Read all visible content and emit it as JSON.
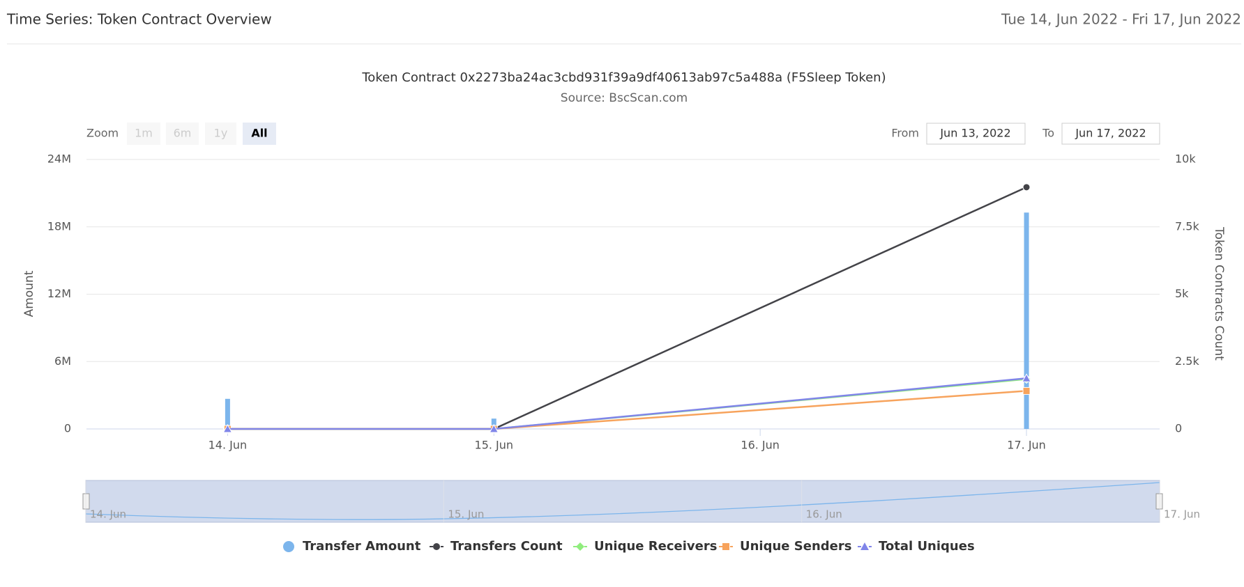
{
  "header": {
    "title": "Time Series: Token Contract Overview",
    "date_range": "Tue 14, Jun 2022 - Fri 17, Jun 2022"
  },
  "range_selector": {
    "zoom_label": "Zoom",
    "buttons": [
      "1m",
      "6m",
      "1y",
      "All"
    ],
    "active": "All",
    "from_label": "From",
    "from": "Jun 13, 2022",
    "to_label": "To",
    "to": "Jun 17, 2022"
  },
  "chart_data": {
    "type": "combo",
    "title": "Token Contract 0x2273ba24ac3cbd931f39a9df40613ab97c5a488a (F5Sleep Token)",
    "subtitle": "Source: BscScan.com",
    "y_label": "Amount",
    "y2_label": "Token Contracts Count",
    "x": [
      "14. Jun",
      "15. Jun",
      "17. Jun"
    ],
    "xlim": [
      13.47,
      17.5
    ],
    "xticks": [
      {
        "value": 14,
        "label": "14. Jun"
      },
      {
        "value": 15,
        "label": "15. Jun"
      },
      {
        "value": 16,
        "label": "16. Jun"
      },
      {
        "value": 17,
        "label": "17. Jun"
      }
    ],
    "ylim": [
      0,
      24000000
    ],
    "yticks": [
      0,
      {
        "value": 6000000,
        "label": "6M"
      },
      {
        "value": 12000000,
        "label": "12M"
      },
      {
        "value": 18000000,
        "label": "18M"
      },
      {
        "value": 24000000,
        "label": "24M"
      }
    ],
    "y2lim": [
      0,
      10000
    ],
    "y2ticks": [
      0,
      {
        "value": 2500,
        "label": "2.5k"
      },
      {
        "value": 5000,
        "label": "5k"
      },
      {
        "value": 7500,
        "label": "7.5k"
      },
      {
        "value": 10000,
        "label": "10k"
      }
    ],
    "grid": true,
    "series": [
      {
        "name": "Transfer Amount",
        "type": "column",
        "color": "#7cb5ec",
        "marker": "circle",
        "values": [
          2680000,
          920000,
          19270000
        ]
      },
      {
        "name": "Transfers Count",
        "type": "line",
        "axis": "y2",
        "color": "#434348",
        "marker": "circle",
        "values": [
          0,
          0,
          8970
        ]
      },
      {
        "name": "Unique Receivers",
        "type": "line",
        "axis": "y2",
        "color": "#90ed7d",
        "marker": "diamond",
        "values": [
          0,
          0,
          1850
        ]
      },
      {
        "name": "Unique Senders",
        "type": "line",
        "axis": "y2",
        "color": "#f7a35c",
        "marker": "square",
        "values": [
          0,
          0,
          1410
        ]
      },
      {
        "name": "Total Uniques",
        "type": "line",
        "axis": "y2",
        "color": "#8085e9",
        "marker": "triangle",
        "values": [
          0,
          0,
          1880
        ]
      }
    ]
  }
}
